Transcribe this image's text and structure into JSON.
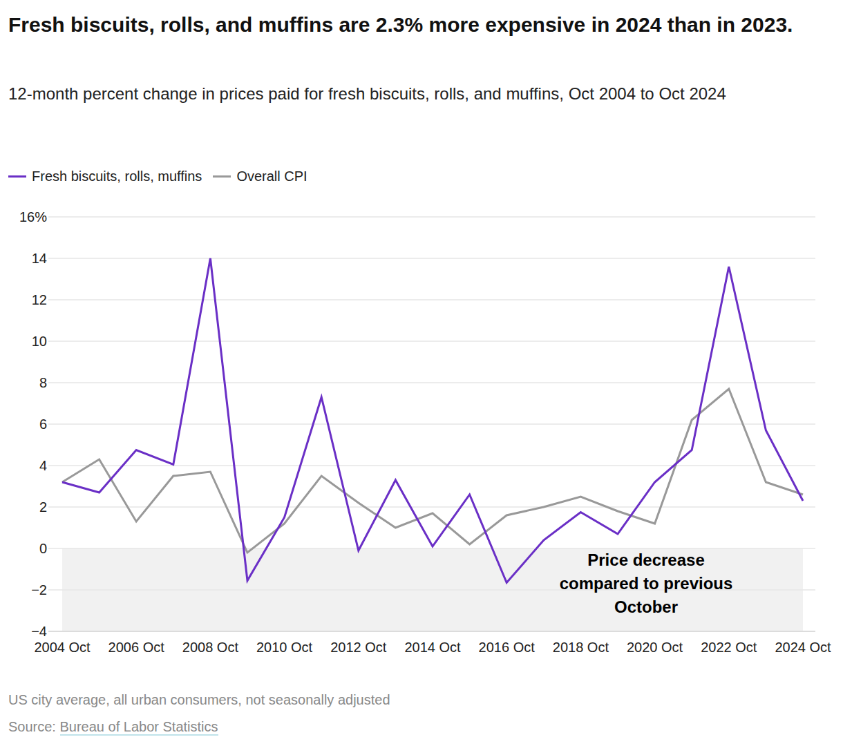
{
  "chart_data": {
    "type": "line",
    "title": "Fresh biscuits, rolls, and muffins are 2.3% more expensive in 2024 than in 2023.",
    "subtitle": "12-month percent change in prices paid for fresh biscuits, rolls, and muffins, Oct 2004 to Oct 2024",
    "categories": [
      "2004 Oct",
      null,
      "2006 Oct",
      null,
      "2008 Oct",
      null,
      "2010 Oct",
      null,
      "2012 Oct",
      null,
      "2014 Oct",
      null,
      "2016 Oct",
      null,
      "2018 Oct",
      null,
      "2020 Oct",
      null,
      "2022 Oct",
      null,
      "2024 Oct"
    ],
    "series": [
      {
        "name": "Fresh biscuits, rolls, muffins",
        "color": "#6a2fc6",
        "values": [
          3.2,
          2.7,
          4.75,
          4.05,
          14.0,
          -1.55,
          1.5,
          7.3,
          -0.1,
          3.3,
          0.1,
          2.6,
          -1.65,
          0.4,
          1.75,
          0.7,
          3.2,
          4.75,
          13.6,
          5.7,
          2.3
        ]
      },
      {
        "name": "Overall CPI",
        "color": "#999999",
        "values": [
          3.2,
          4.3,
          1.3,
          3.5,
          3.7,
          -0.2,
          1.2,
          3.5,
          2.2,
          1.0,
          1.7,
          0.2,
          1.6,
          2.0,
          2.5,
          1.8,
          1.2,
          6.2,
          7.7,
          3.2,
          2.6
        ]
      }
    ],
    "ylim": [
      -4,
      16
    ],
    "yticks": [
      {
        "value": -4,
        "label": "−4"
      },
      {
        "value": -2,
        "label": "−2"
      },
      0,
      2,
      4,
      6,
      8,
      10,
      12,
      14,
      {
        "value": 16,
        "label": "16%"
      }
    ],
    "grid": true,
    "legend": "top left",
    "annotation": {
      "text": "Price decrease compared to previous October",
      "ylim": [
        -4,
        0
      ]
    },
    "note": "US city average, all urban consumers, not seasonally adjusted",
    "source_label": "Source:",
    "source": "Bureau of Labor Statistics"
  }
}
